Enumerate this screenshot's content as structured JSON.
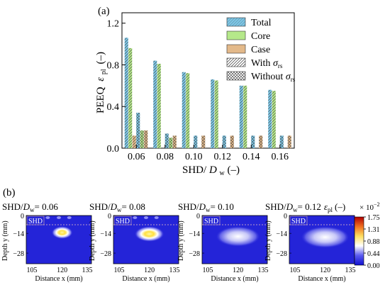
{
  "panel_a_label": "(a)",
  "panel_b_label": "(b)",
  "chart_data": [
    {
      "type": "bar",
      "ylabel": "PEEQ",
      "ylabel_symbol": "ε",
      "ylabel_sub": "pl",
      "ylabel_unit": "(–)",
      "xlabel": "SHD/",
      "xlabel_symbol": "D",
      "xlabel_sub": "w",
      "xlabel_unit": " (–)",
      "ylim": [
        0,
        1.3
      ],
      "yticks": [
        "0.0",
        "0.4",
        "0.8",
        "1.2"
      ],
      "ytick_values": [
        0.0,
        0.4,
        0.8,
        1.2
      ],
      "categories": [
        "0.06",
        "0.08",
        "0.10",
        "0.12",
        "0.14",
        "0.16"
      ],
      "legend_position": "top-right",
      "legend": {
        "total": "Total",
        "core": "Core",
        "case": "Case",
        "with_prefix": "With ",
        "without_prefix": "Without ",
        "sigma": "σ",
        "sigma_sub": "rs"
      },
      "colors": {
        "total": "#7ec8e8",
        "core": "#b5e88a",
        "case": "#e3b98a"
      },
      "series": [
        {
          "name": "Total",
          "stress": "with",
          "values": [
            1.06,
            0.84,
            0.73,
            0.66,
            0.6,
            0.56
          ]
        },
        {
          "name": "Core",
          "stress": "with",
          "values": [
            0.96,
            0.81,
            0.72,
            0.65,
            0.6,
            0.55
          ]
        },
        {
          "name": "Case",
          "stress": "with",
          "values": [
            0.12,
            0.0,
            0.0,
            0.0,
            0.0,
            0.0
          ]
        },
        {
          "name": "Total",
          "stress": "without",
          "values": [
            0.34,
            0.14,
            0.12,
            0.12,
            0.12,
            0.12
          ]
        },
        {
          "name": "Core",
          "stress": "without",
          "values": [
            0.17,
            0.1,
            0.0,
            0.0,
            0.0,
            0.0
          ]
        },
        {
          "name": "Case",
          "stress": "without",
          "values": [
            0.17,
            0.12,
            0.12,
            0.12,
            0.12,
            0.12
          ]
        }
      ]
    },
    {
      "type": "heatmap",
      "panels": [
        {
          "title_prefix": "SHD/",
          "title_symbol": "D",
          "title_sub": "w",
          "title_value": "= 0.06",
          "intensity": 1.0,
          "bright": true
        },
        {
          "title_prefix": "SHD/",
          "title_symbol": "D",
          "title_sub": "w",
          "title_value": "= 0.08",
          "intensity": 0.8,
          "bright": true
        },
        {
          "title_prefix": "SHD/",
          "title_symbol": "D",
          "title_sub": "w",
          "title_value": "= 0.10",
          "intensity": 0.45,
          "bright": false
        },
        {
          "title_prefix": "SHD/",
          "title_symbol": "D",
          "title_sub": "w",
          "title_value": "= 0.12",
          "intensity": 0.35,
          "bright": false
        }
      ],
      "last_title_suffix": "ε",
      "last_title_suffix_sub": "pl",
      "last_title_suffix_unit": "(–)",
      "scale_factor": "× 10",
      "scale_exp": "−2",
      "ylabel": "Depth y (mm)",
      "xlabel": "Distance x (mm)",
      "shd_label": "SHD",
      "yticks": [
        "0",
        "−14",
        "−28"
      ],
      "xticks": [
        "105",
        "120",
        "135"
      ],
      "colorbar_ticks": [
        "1.75",
        "1.31",
        "0.88",
        "0.44",
        "0.00"
      ],
      "colorbar_colors": [
        "#1010d0",
        "#5a5af0",
        "#ffffff",
        "#ffe060",
        "#f07020",
        "#b00000"
      ]
    }
  ]
}
